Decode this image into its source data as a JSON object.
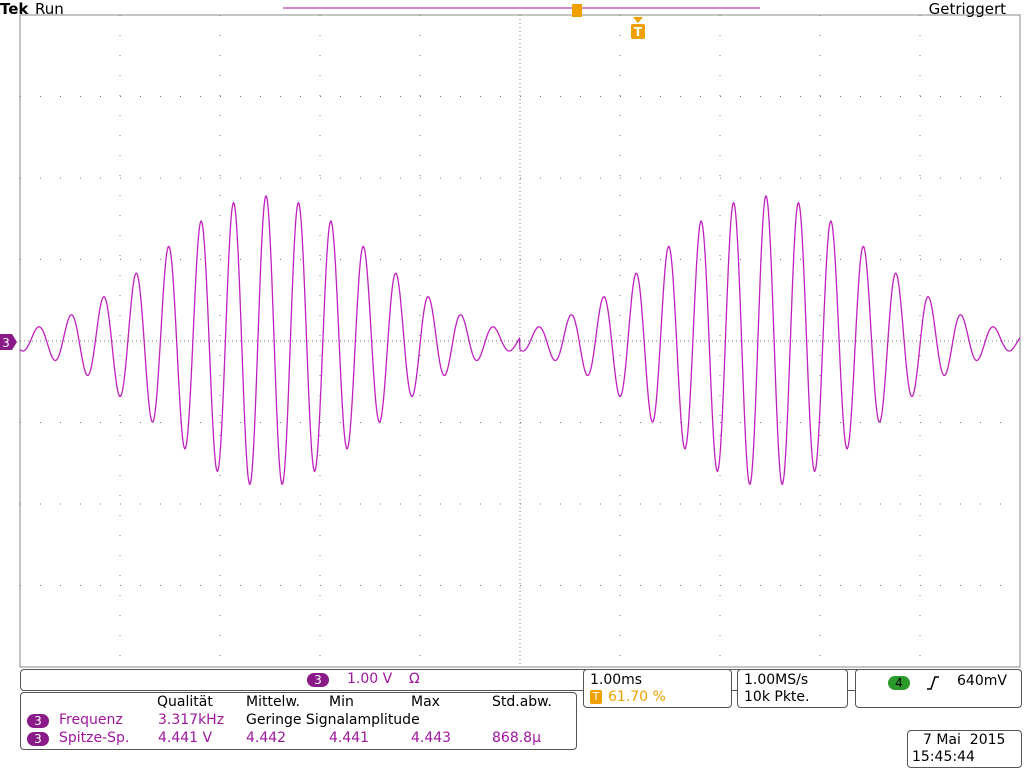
{
  "status": {
    "brand": "Tek",
    "state": "Run",
    "trigger_state": "Getriggert",
    "trigger_marker": "T",
    "channel_marker": "3"
  },
  "vertical": {
    "channel": "3",
    "scale": "1.00 V",
    "coupling": "Ω"
  },
  "measurements": {
    "headers": [
      "Qualität",
      "Mittelw.",
      "Min",
      "Max",
      "Std.abw."
    ],
    "rows": [
      {
        "channel": "3",
        "name": "Frequenz",
        "value": "3.317kHz",
        "note": "Geringe Signalamplitude"
      },
      {
        "channel": "3",
        "name": "Spitze-Sp.",
        "value": "4.441 V",
        "mean": "4.442",
        "min": "4.441",
        "max": "4.443",
        "std": "868.8µ"
      }
    ]
  },
  "horizontal": {
    "scale": "1.00ms",
    "trigger_icon": "T",
    "position": "61.70 %"
  },
  "acquisition": {
    "rate": "1.00MS/s",
    "points": "10k Pkte."
  },
  "trigger": {
    "channel": "4",
    "level": "640mV"
  },
  "clock": {
    "date": "7 Mai  2015",
    "time": "15:45:44"
  }
}
